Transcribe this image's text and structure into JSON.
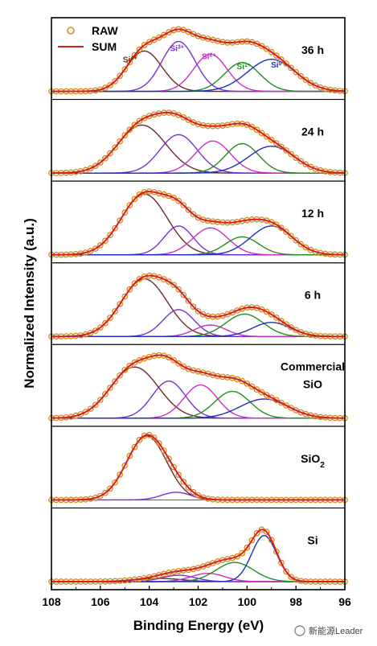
{
  "chart_data": {
    "type": "line",
    "xlabel": "Binding Energy (eV)",
    "ylabel": "Normalized Intensity (a.u.)",
    "xlim": [
      108,
      96
    ],
    "x_ticks": [
      "108",
      "106",
      "104",
      "102",
      "100",
      "98",
      "96"
    ],
    "legend": {
      "placement": "top-left",
      "items": [
        "RAW",
        "SUM"
      ]
    },
    "series_styles": {
      "RAW": "#d68a1a",
      "SUM": "#d81e1e",
      "Si4+": "#6b2a2a",
      "Si3+": "#7b2fd6",
      "Si2+": "#cc2fc4",
      "Si1+": "#1f8f1f",
      "Si0": "#1f2fbf"
    },
    "component_order": [
      "Si4+",
      "Si3+",
      "Si2+",
      "Si1+",
      "Si0"
    ],
    "component_annotations": [
      {
        "label": "Si",
        "sup": "4+",
        "color": "#6b2a2a"
      },
      {
        "label": "Si",
        "sup": "3+",
        "color": "#7b2fd6"
      },
      {
        "label": "Si",
        "sup": "2+",
        "color": "#cc2fc4"
      },
      {
        "label": "Si",
        "sup": "1+",
        "color": "#1f8f1f"
      },
      {
        "label": "Si",
        "sup": "0",
        "color": "#1f2fbf"
      }
    ],
    "panels": [
      {
        "label": "36 h",
        "components": [
          {
            "name": "Si4+",
            "center": 104.2,
            "fwhm": 1.7,
            "height": 0.63
          },
          {
            "name": "Si3+",
            "center": 102.8,
            "fwhm": 1.6,
            "height": 0.78
          },
          {
            "name": "Si2+",
            "center": 101.5,
            "fwhm": 1.6,
            "height": 0.58
          },
          {
            "name": "Si1+",
            "center": 100.2,
            "fwhm": 1.7,
            "height": 0.45
          },
          {
            "name": "Si0",
            "center": 99.0,
            "fwhm": 2.3,
            "height": 0.5
          }
        ]
      },
      {
        "label": "24 h",
        "components": [
          {
            "name": "Si4+",
            "center": 104.3,
            "fwhm": 2.3,
            "height": 0.75
          },
          {
            "name": "Si3+",
            "center": 102.8,
            "fwhm": 1.8,
            "height": 0.6
          },
          {
            "name": "Si2+",
            "center": 101.4,
            "fwhm": 1.7,
            "height": 0.5
          },
          {
            "name": "Si1+",
            "center": 100.2,
            "fwhm": 1.6,
            "height": 0.46
          },
          {
            "name": "Si0",
            "center": 99.0,
            "fwhm": 2.2,
            "height": 0.42
          }
        ]
      },
      {
        "label": "12 h",
        "components": [
          {
            "name": "Si4+",
            "center": 104.2,
            "fwhm": 2.2,
            "height": 0.95
          },
          {
            "name": "Si3+",
            "center": 102.8,
            "fwhm": 1.4,
            "height": 0.45
          },
          {
            "name": "Si2+",
            "center": 101.5,
            "fwhm": 1.7,
            "height": 0.42
          },
          {
            "name": "Si1+",
            "center": 100.2,
            "fwhm": 1.6,
            "height": 0.28
          },
          {
            "name": "Si0",
            "center": 99.0,
            "fwhm": 2.0,
            "height": 0.45
          }
        ]
      },
      {
        "label": "6 h",
        "components": [
          {
            "name": "Si4+",
            "center": 104.2,
            "fwhm": 2.2,
            "height": 0.9
          },
          {
            "name": "Si3+",
            "center": 102.8,
            "fwhm": 1.5,
            "height": 0.42
          },
          {
            "name": "Si2+",
            "center": 101.5,
            "fwhm": 1.5,
            "height": 0.18
          },
          {
            "name": "Si1+",
            "center": 100.1,
            "fwhm": 1.8,
            "height": 0.35
          },
          {
            "name": "Si0",
            "center": 99.0,
            "fwhm": 1.8,
            "height": 0.22
          }
        ]
      },
      {
        "label": "Commercial SiO",
        "label_lines": [
          "Commercial",
          "SiO"
        ],
        "components": [
          {
            "name": "Si4+",
            "center": 104.6,
            "fwhm": 2.3,
            "height": 0.8
          },
          {
            "name": "Si3+",
            "center": 103.2,
            "fwhm": 1.6,
            "height": 0.58
          },
          {
            "name": "Si2+",
            "center": 101.9,
            "fwhm": 1.6,
            "height": 0.52
          },
          {
            "name": "Si1+",
            "center": 100.6,
            "fwhm": 1.7,
            "height": 0.42
          },
          {
            "name": "Si0",
            "center": 99.3,
            "fwhm": 2.3,
            "height": 0.3
          }
        ]
      },
      {
        "label": "SiO2",
        "label_text": "SiO",
        "label_sub": "2",
        "components": [
          {
            "name": "Si4+",
            "center": 104.1,
            "fwhm": 1.9,
            "height": 1.0
          },
          {
            "name": "Si3+",
            "center": 102.9,
            "fwhm": 1.4,
            "height": 0.12
          }
        ]
      },
      {
        "label": "Si",
        "components": [
          {
            "name": "Si4+",
            "center": 103.6,
            "fwhm": 2.2,
            "height": 0.05
          },
          {
            "name": "Si3+",
            "center": 102.8,
            "fwhm": 1.6,
            "height": 0.1
          },
          {
            "name": "Si2+",
            "center": 101.6,
            "fwhm": 1.6,
            "height": 0.13
          },
          {
            "name": "Si1+",
            "center": 100.5,
            "fwhm": 1.8,
            "height": 0.3
          },
          {
            "name": "Si0",
            "center": 99.3,
            "fwhm": 1.2,
            "height": 0.72
          }
        ]
      }
    ]
  },
  "watermark": "新能源Leader"
}
